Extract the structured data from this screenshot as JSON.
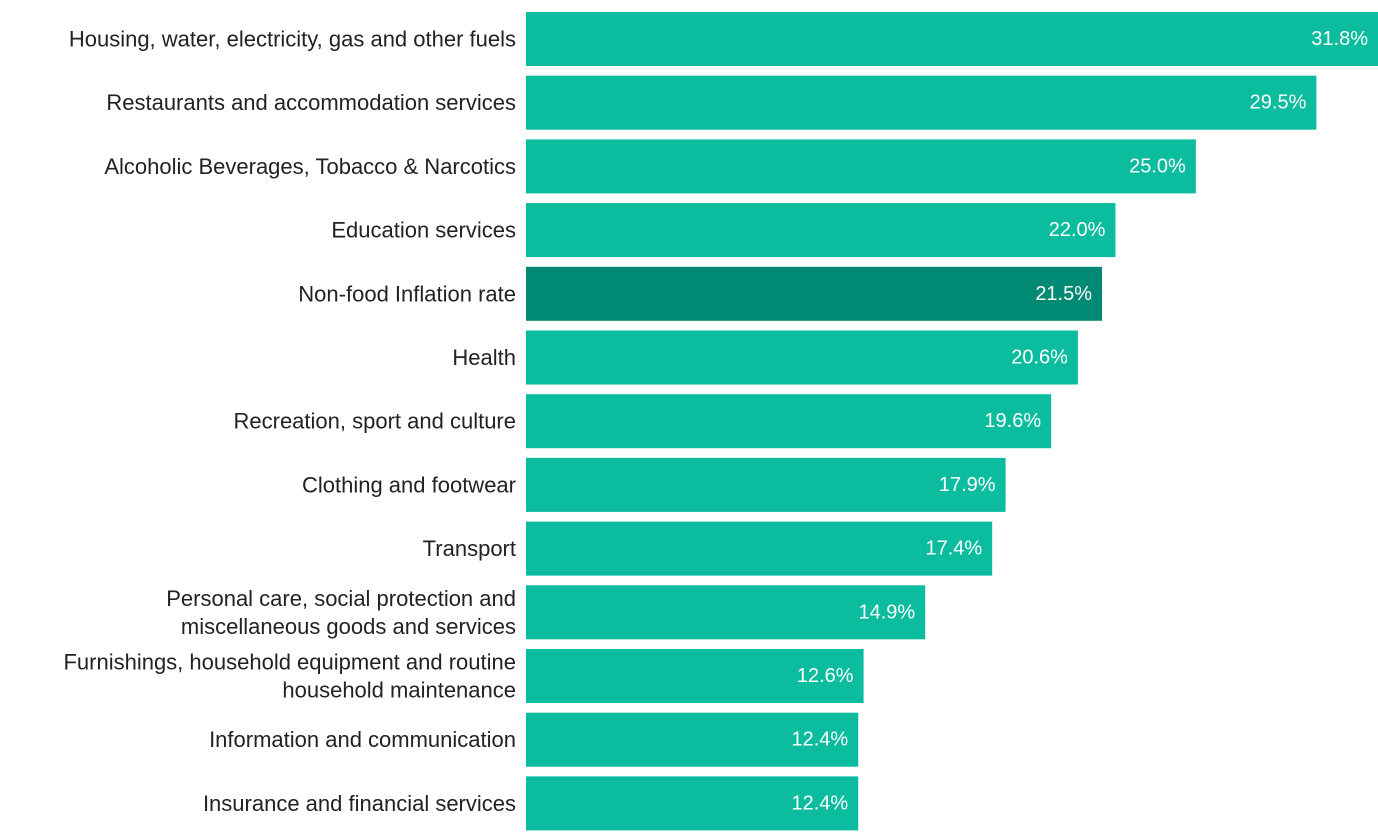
{
  "chart_data": {
    "type": "bar",
    "orientation": "horizontal",
    "title": "",
    "xlabel": "",
    "ylabel": "",
    "grid": false,
    "categories": [
      "Housing, water, electricity, gas and other fuels",
      "Restaurants and accommodation services",
      "Alcoholic Beverages, Tobacco & Narcotics",
      "Education services",
      "Non-food Inflation rate",
      "Health",
      "Recreation, sport and culture",
      "Clothing and footwear",
      "Transport",
      "Personal care, social protection and miscellaneous goods and services",
      "Furnishings, household equipment and routine household maintenance",
      "Information and communication",
      "Insurance and financial services"
    ],
    "label_lines": [
      [
        "Housing, water, electricity, gas and other fuels"
      ],
      [
        "Restaurants and accommodation services"
      ],
      [
        "Alcoholic Beverages, Tobacco & Narcotics"
      ],
      [
        "Education services"
      ],
      [
        "Non-food Inflation rate"
      ],
      [
        "Health"
      ],
      [
        "Recreation, sport and culture"
      ],
      [
        "Clothing and footwear"
      ],
      [
        "Transport"
      ],
      [
        "Personal care, social protection and",
        "miscellaneous goods and services"
      ],
      [
        "Furnishings, household equipment and routine",
        "household maintenance"
      ],
      [
        "Information and communication"
      ],
      [
        "Insurance and financial services"
      ]
    ],
    "values": [
      31.8,
      29.5,
      25.0,
      22.0,
      21.5,
      20.6,
      19.6,
      17.9,
      17.4,
      14.9,
      12.6,
      12.4,
      12.4
    ],
    "value_labels": [
      "31.8%",
      "29.5%",
      "25.0%",
      "22.0%",
      "21.5%",
      "20.6%",
      "19.6%",
      "17.9%",
      "17.4%",
      "14.9%",
      "12.6%",
      "12.4%",
      "12.4%"
    ],
    "xlim": [
      0,
      31.8
    ],
    "highlight_index": 4,
    "colors": {
      "bar": "#0bbc9f",
      "highlight": "#008a73",
      "label": "#222222",
      "value_text": "#ffffff"
    }
  }
}
